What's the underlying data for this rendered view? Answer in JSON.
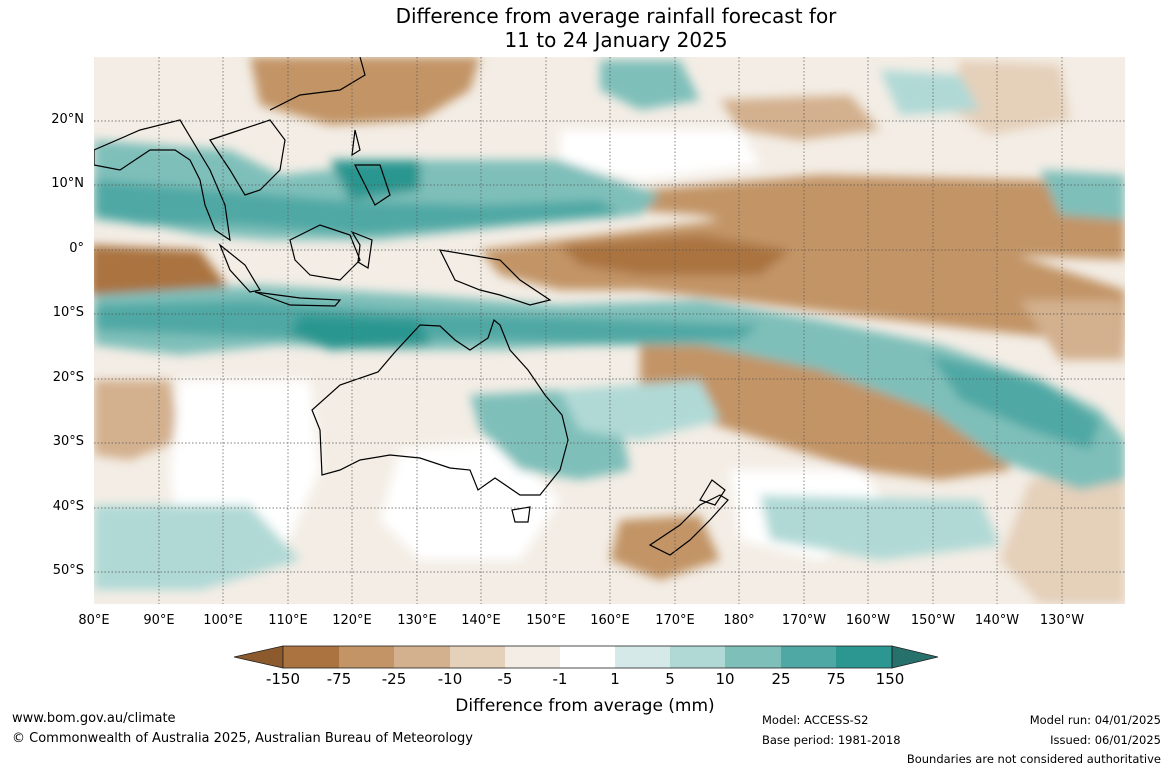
{
  "title_line1": "Difference from average rainfall forecast for",
  "title_line2": "11 to 24 January 2025",
  "lat_labels": [
    "20°N",
    "10°N",
    "0°",
    "10°S",
    "20°S",
    "30°S",
    "40°S",
    "50°S"
  ],
  "lon_labels": [
    "80°E",
    "90°E",
    "100°E",
    "110°E",
    "120°E",
    "130°E",
    "140°E",
    "150°E",
    "160°E",
    "170°E",
    "180°",
    "170°W",
    "160°W",
    "150°W",
    "140°W",
    "130°W"
  ],
  "colorbar": {
    "ticks": [
      "-150",
      "-75",
      "-25",
      "-10",
      "-5",
      "-1",
      "1",
      "5",
      "10",
      "25",
      "75",
      "150"
    ],
    "colors": [
      "#8c5a2c",
      "#aa7340",
      "#c29466",
      "#d3b08e",
      "#e5d0ba",
      "#f3ede5",
      "#ffffff",
      "#d5eae8",
      "#b0d9d6",
      "#7fbfba",
      "#4fa8a4",
      "#2c9690",
      "#27716d"
    ],
    "title": "Difference from average (mm)"
  },
  "footer": {
    "url": "www.bom.gov.au/climate",
    "copyright": "© Commonwealth of Australia 2025, Australian Bureau of Meteorology",
    "model": "Model: ACCESS-S2",
    "base_period": "Base period: 1981-2018",
    "model_run": "Model run: 04/01/2025",
    "issued": "Issued: 06/01/2025",
    "disclaimer": "Boundaries are not considered authoritative"
  }
}
